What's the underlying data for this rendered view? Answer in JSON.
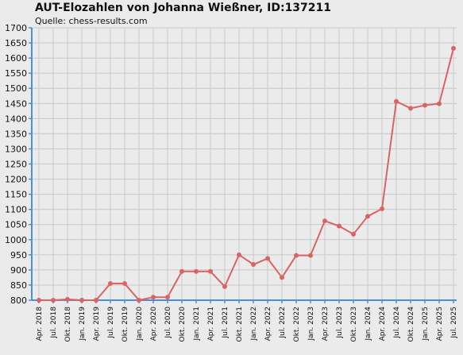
{
  "chart_data": {
    "type": "line",
    "title": "AUT-Elozahlen von Johanna Wießner, ID:137211",
    "subtitle": "Quelle: chess-results.com",
    "xlabel": "",
    "ylabel": "",
    "ylim": [
      800,
      1700
    ],
    "ytick_step": 50,
    "grid": true,
    "categories": [
      "Apr. 2018",
      "Jul. 2018",
      "Okt. 2018",
      "Jan. 2019",
      "Apr. 2019",
      "Jul. 2019",
      "Okt. 2019",
      "Jan. 2020",
      "Apr. 2020",
      "Jul. 2020",
      "Okt. 2020",
      "Jan. 2021",
      "Apr. 2021",
      "Jul. 2021",
      "Okt. 2021",
      "Jan. 2022",
      "Apr. 2022",
      "Jul. 2022",
      "Okt. 2022",
      "Jan. 2023",
      "Apr. 2023",
      "Jul. 2023",
      "Okt. 2023",
      "Jan. 2024",
      "Apr. 2024",
      "Jul. 2024",
      "Okt. 2024",
      "Jan. 2025",
      "Apr. 2025",
      "Jul. 2025"
    ],
    "series": [
      {
        "color": "#d96464",
        "values": [
          800,
          800,
          803,
          800,
          800,
          855,
          855,
          800,
          810,
          810,
          895,
          895,
          895,
          845,
          950,
          918,
          938,
          875,
          948,
          948,
          1062,
          1045,
          1018,
          1077,
          1102,
          1457,
          1434,
          1444,
          1449,
          1632
        ]
      }
    ]
  },
  "colors": {
    "background": "#ebebeb",
    "grid": "#c8c8c8",
    "axis": "#4a90d9",
    "line": "#d96464"
  }
}
